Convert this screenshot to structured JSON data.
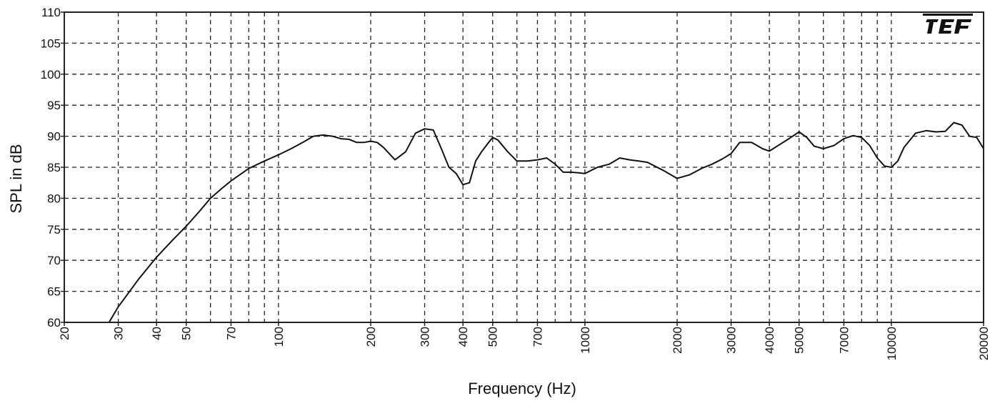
{
  "chart_data": {
    "type": "line",
    "xlabel": "Frequency (Hz)",
    "ylabel": "SPL in dB",
    "x_scale": "log",
    "xlim": [
      20,
      20000
    ],
    "ylim": [
      60,
      110
    ],
    "y_ticks": [
      60,
      65,
      70,
      75,
      80,
      85,
      90,
      95,
      100,
      105,
      110
    ],
    "x_tick_labels": [
      20,
      30,
      40,
      50,
      70,
      100,
      200,
      300,
      400,
      500,
      700,
      1000,
      2000,
      3000,
      4000,
      5000,
      7000,
      10000,
      20000
    ],
    "x_gridlines": [
      30,
      40,
      50,
      60,
      70,
      80,
      90,
      100,
      200,
      300,
      400,
      500,
      600,
      700,
      800,
      900,
      1000,
      2000,
      3000,
      4000,
      5000,
      6000,
      7000,
      8000,
      9000,
      10000
    ],
    "grid": true,
    "logo": "TEF",
    "series": [
      {
        "x": [
          28,
          30,
          35,
          40,
          45,
          50,
          55,
          60,
          65,
          70,
          80,
          90,
          100,
          110,
          120,
          130,
          140,
          150,
          160,
          170,
          180,
          190,
          200,
          210,
          220,
          240,
          260,
          280,
          300,
          320,
          340,
          360,
          380,
          400,
          420,
          440,
          460,
          480,
          500,
          520,
          560,
          600,
          650,
          700,
          750,
          800,
          850,
          900,
          950,
          1000,
          1100,
          1200,
          1300,
          1400,
          1500,
          1600,
          1800,
          2000,
          2200,
          2400,
          2600,
          2800,
          3000,
          3200,
          3500,
          3800,
          4000,
          4300,
          4600,
          5000,
          5300,
          5600,
          6000,
          6500,
          7000,
          7500,
          8000,
          8500,
          9000,
          9500,
          10000,
          10500,
          11000,
          12000,
          13000,
          14000,
          15000,
          16000,
          17000,
          18000,
          19000,
          20000
        ],
        "y": [
          60,
          62.5,
          67,
          70.5,
          73.2,
          75.5,
          77.8,
          80,
          81.5,
          82.8,
          84.8,
          86,
          87,
          88,
          89,
          90,
          90.2,
          90,
          89.6,
          89.5,
          89,
          89,
          89.2,
          89,
          88.2,
          86.2,
          87.5,
          90.5,
          91.2,
          91,
          88,
          85,
          84,
          82.2,
          82.5,
          86,
          87.5,
          88.7,
          89.8,
          89.4,
          87.5,
          86,
          86,
          86.2,
          86.5,
          85.5,
          84.2,
          84.2,
          84.1,
          84,
          85,
          85.5,
          86.5,
          86.2,
          86,
          85.8,
          84.5,
          83.2,
          83.8,
          84.8,
          85.5,
          86.3,
          87.2,
          89,
          89,
          88,
          87.6,
          88.6,
          89.5,
          90.7,
          89.8,
          88.4,
          88,
          88.5,
          89.6,
          90.1,
          89.8,
          88.5,
          86.5,
          85.2,
          85,
          86,
          88.2,
          90.5,
          90.9,
          90.7,
          90.8,
          92.2,
          91.8,
          90,
          89.8,
          88
        ]
      }
    ]
  }
}
